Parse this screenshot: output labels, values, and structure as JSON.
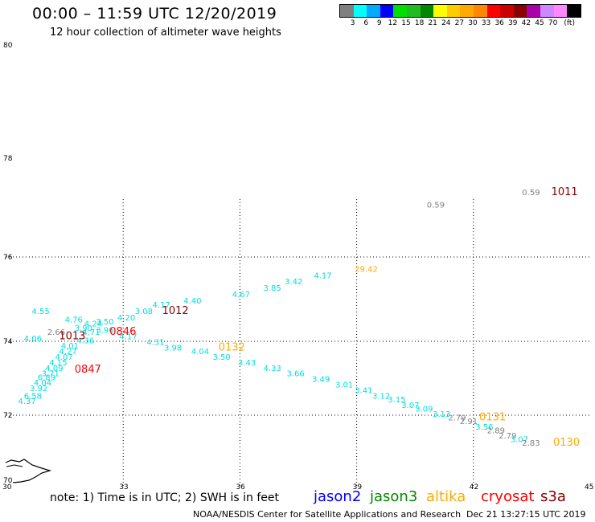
{
  "title": "00:00 – 11:59 UTC 12/20/2019",
  "subtitle": "12 hour collection of altimeter wave heights",
  "legend": {
    "unit": "(ft)",
    "colors": [
      "#808080",
      "#00ffff",
      "#00aaff",
      "#0000ff",
      "#00dd00",
      "#22bb22",
      "#008800",
      "#ffff00",
      "#ffcc00",
      "#ffaa00",
      "#ff8800",
      "#ff0000",
      "#cc0000",
      "#880000",
      "#aa00aa",
      "#cc88ff",
      "#ff88ff",
      "#000000"
    ],
    "labels": [
      "3",
      "6",
      "9",
      "12",
      "15",
      "18",
      "21",
      "24",
      "27",
      "30",
      "33",
      "36",
      "39",
      "42",
      "45",
      "70"
    ]
  },
  "axes": {
    "x_ticks": [
      "30",
      "33",
      "36",
      "39",
      "42",
      "45"
    ],
    "y_ticks": [
      "80",
      "78",
      "76",
      "74",
      "72",
      "70"
    ]
  },
  "note": "note:  1) Time is in UTC;  2) SWH is in feet",
  "satellites": [
    {
      "name": "jason2",
      "color": "#0000ff"
    },
    {
      "name": "jason3",
      "color": "#008800"
    },
    {
      "name": "altika",
      "color": "#ffaa00"
    },
    {
      "name": "cryosat",
      "color": "#ff0000"
    },
    {
      "name": "s3a",
      "color": "#880000"
    }
  ],
  "footer_left": "NOAA/NESDIS Center for Satellite Applications and Research",
  "footer_right": "Dec 21 13:27:15 UTC 2019",
  "wave_heights": [
    {
      "lon": 43.25,
      "lat": 77.25,
      "text": "0.59",
      "color": "#808080"
    },
    {
      "lon": 40.8,
      "lat": 77.0,
      "text": "0.59",
      "color": "#808080"
    },
    {
      "lon": 38.95,
      "lat": 75.65,
      "text": "29.42",
      "color": "#ffaa00"
    },
    {
      "lon": 37.9,
      "lat": 75.5,
      "text": "4.17",
      "color": "#00dddd"
    },
    {
      "lon": 37.15,
      "lat": 75.35,
      "text": "3.42",
      "color": "#00dddd"
    },
    {
      "lon": 36.6,
      "lat": 75.2,
      "text": "3.85",
      "color": "#00dddd"
    },
    {
      "lon": 35.8,
      "lat": 75.05,
      "text": "4.67",
      "color": "#00dddd"
    },
    {
      "lon": 34.55,
      "lat": 74.9,
      "text": "4.40",
      "color": "#00dddd"
    },
    {
      "lon": 33.75,
      "lat": 74.8,
      "text": "4.17",
      "color": "#00dddd"
    },
    {
      "lon": 33.3,
      "lat": 74.65,
      "text": "3.08",
      "color": "#00dddd"
    },
    {
      "lon": 32.85,
      "lat": 74.5,
      "text": "4.20",
      "color": "#00dddd"
    },
    {
      "lon": 30.65,
      "lat": 74.65,
      "text": "4.55",
      "color": "#00dddd"
    },
    {
      "lon": 31.5,
      "lat": 74.45,
      "text": "4.76",
      "color": "#00dddd"
    },
    {
      "lon": 32.0,
      "lat": 74.35,
      "text": "4.24",
      "color": "#00dddd"
    },
    {
      "lon": 32.3,
      "lat": 74.4,
      "text": "3.50",
      "color": "#00dddd"
    },
    {
      "lon": 31.75,
      "lat": 74.25,
      "text": "3.90",
      "color": "#00dddd"
    },
    {
      "lon": 32.3,
      "lat": 74.2,
      "text": "3.96",
      "color": "#00dddd"
    },
    {
      "lon": 31.05,
      "lat": 74.15,
      "text": "2.66",
      "color": "#808080"
    },
    {
      "lon": 31.95,
      "lat": 74.15,
      "text": "4.71",
      "color": "#00dddd"
    },
    {
      "lon": 32.9,
      "lat": 74.05,
      "text": "4.17",
      "color": "#00dddd"
    },
    {
      "lon": 30.45,
      "lat": 74.0,
      "text": "4.06",
      "color": "#00dddd"
    },
    {
      "lon": 31.8,
      "lat": 73.95,
      "text": "4.36",
      "color": "#00dddd"
    },
    {
      "lon": 33.6,
      "lat": 73.9,
      "text": "4.31",
      "color": "#00dddd"
    },
    {
      "lon": 31.4,
      "lat": 73.8,
      "text": "4.01",
      "color": "#00dddd"
    },
    {
      "lon": 34.05,
      "lat": 73.75,
      "text": "3.98",
      "color": "#00dddd"
    },
    {
      "lon": 31.35,
      "lat": 73.65,
      "text": "4.27",
      "color": "#00dddd"
    },
    {
      "lon": 34.75,
      "lat": 73.65,
      "text": "4.04",
      "color": "#00dddd"
    },
    {
      "lon": 31.25,
      "lat": 73.5,
      "text": "4.07",
      "color": "#00dddd"
    },
    {
      "lon": 35.3,
      "lat": 73.5,
      "text": "3.50",
      "color": "#00dddd"
    },
    {
      "lon": 31.1,
      "lat": 73.35,
      "text": "4.15",
      "color": "#00dddd"
    },
    {
      "lon": 35.95,
      "lat": 73.35,
      "text": "3.43",
      "color": "#00dddd"
    },
    {
      "lon": 31.0,
      "lat": 73.2,
      "text": "4.09",
      "color": "#00dddd"
    },
    {
      "lon": 36.6,
      "lat": 73.2,
      "text": "4.33",
      "color": "#00dddd"
    },
    {
      "lon": 30.9,
      "lat": 73.05,
      "text": "3.71",
      "color": "#00dddd"
    },
    {
      "lon": 37.2,
      "lat": 73.05,
      "text": "3.66",
      "color": "#00dddd"
    },
    {
      "lon": 30.8,
      "lat": 72.95,
      "text": "6.89",
      "color": "#00dddd"
    },
    {
      "lon": 37.85,
      "lat": 72.9,
      "text": "3.49",
      "color": "#00dddd"
    },
    {
      "lon": 30.7,
      "lat": 72.8,
      "text": "4.04",
      "color": "#00dddd"
    },
    {
      "lon": 38.45,
      "lat": 72.75,
      "text": "3.01",
      "color": "#00dddd"
    },
    {
      "lon": 30.6,
      "lat": 72.65,
      "text": "3.92",
      "color": "#00dddd"
    },
    {
      "lon": 38.95,
      "lat": 72.6,
      "text": "3.41",
      "color": "#00dddd"
    },
    {
      "lon": 30.45,
      "lat": 72.45,
      "text": "6.58",
      "color": "#00dddd"
    },
    {
      "lon": 39.4,
      "lat": 72.45,
      "text": "3.12",
      "color": "#00dddd"
    },
    {
      "lon": 30.3,
      "lat": 72.3,
      "text": "4.37",
      "color": "#00dddd"
    },
    {
      "lon": 39.8,
      "lat": 72.35,
      "text": "3.15",
      "color": "#00dddd"
    },
    {
      "lon": 40.15,
      "lat": 72.2,
      "text": "3.07",
      "color": "#00dddd"
    },
    {
      "lon": 40.5,
      "lat": 72.1,
      "text": "3.09",
      "color": "#00dddd"
    },
    {
      "lon": 40.95,
      "lat": 71.95,
      "text": "3.13",
      "color": "#00dddd"
    },
    {
      "lon": 41.35,
      "lat": 71.85,
      "text": "2.79",
      "color": "#808080"
    },
    {
      "lon": 41.65,
      "lat": 71.75,
      "text": "2.91",
      "color": "#808080"
    },
    {
      "lon": 42.05,
      "lat": 71.6,
      "text": "3.56",
      "color": "#00dddd"
    },
    {
      "lon": 42.35,
      "lat": 71.5,
      "text": "2.89",
      "color": "#808080"
    },
    {
      "lon": 42.65,
      "lat": 71.35,
      "text": "2.79",
      "color": "#808080"
    },
    {
      "lon": 42.95,
      "lat": 71.25,
      "text": "3.07",
      "color": "#00dddd"
    },
    {
      "lon": 43.25,
      "lat": 71.15,
      "text": "2.83",
      "color": "#808080"
    }
  ],
  "pass_times": [
    {
      "lon": 44.0,
      "lat": 77.25,
      "text": "1011",
      "color": "#880000"
    },
    {
      "lon": 34.0,
      "lat": 74.65,
      "text": "1012",
      "color": "#880000"
    },
    {
      "lon": 31.35,
      "lat": 74.05,
      "text": "1013",
      "color": "#880000"
    },
    {
      "lon": 32.65,
      "lat": 74.15,
      "text": "0846",
      "color": "#ff0000"
    },
    {
      "lon": 35.45,
      "lat": 73.75,
      "text": "0132",
      "color": "#ffaa00"
    },
    {
      "lon": 31.75,
      "lat": 73.15,
      "text": "0847",
      "color": "#ff0000"
    },
    {
      "lon": 42.15,
      "lat": 71.85,
      "text": "0131",
      "color": "#ffaa00"
    },
    {
      "lon": 44.05,
      "lat": 71.15,
      "text": "0130",
      "color": "#ffaa00"
    }
  ]
}
